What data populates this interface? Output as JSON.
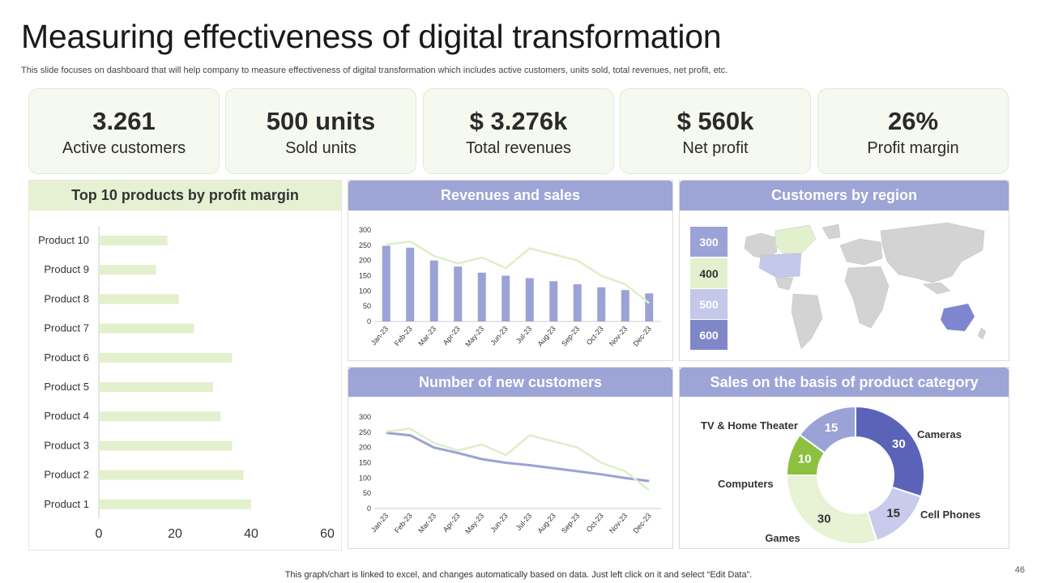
{
  "header": {
    "title": "Measuring effectiveness of digital transformation",
    "subtitle": "This slide focuses on dashboard that will help company to measure effectiveness of digital transformation which includes active customers, units sold, total revenues, net profit, etc."
  },
  "kpis": [
    {
      "value": "3.261",
      "label": "Active customers"
    },
    {
      "value": "500 units",
      "label": "Sold units"
    },
    {
      "value": "$ 3.276k",
      "label": "Total revenues"
    },
    {
      "value": "$ 560k",
      "label": "Net profit"
    },
    {
      "value": "26%",
      "label": "Profit margin"
    }
  ],
  "panels": {
    "products": "Top 10 products by profit margin",
    "revenues": "Revenues and sales",
    "region": "Customers by region",
    "new_customers": "Number of new customers",
    "category": "Sales on the basis of product category"
  },
  "region_legend": [
    "300",
    "400",
    "500",
    "600"
  ],
  "colors": {
    "green_light": "#e6f1d4",
    "bar_green": "#e3f0cd",
    "blue": "#9da4d6",
    "bar_blue": "#9ba2d5",
    "dark_blue": "#5b63b8",
    "lime": "#8dc03f",
    "pale_lime": "#e8f2d4"
  },
  "chart_data": [
    {
      "type": "bar",
      "orientation": "horizontal",
      "title": "Top 10 products by profit margin",
      "categories": [
        "Product 10",
        "Product 9",
        "Product 8",
        "Product 7",
        "Product 6",
        "Product 5",
        "Product 4",
        "Product 3",
        "Product 2",
        "Product 1"
      ],
      "values": [
        18,
        15,
        21,
        25,
        35,
        30,
        32,
        35,
        38,
        40
      ],
      "xlim": [
        0,
        60
      ],
      "xticks": [
        "0",
        "20",
        "40",
        "60"
      ]
    },
    {
      "type": "bar",
      "title": "Revenues and sales",
      "categories": [
        "Jan-23",
        "Feb-23",
        "Mar-23",
        "Apr-23",
        "May-23",
        "Jun-23",
        "Jul-23",
        "Aug-23",
        "Sep-23",
        "Oct-23",
        "Nov-23",
        "Dec-23"
      ],
      "series": [
        {
          "values": [
            248,
            242,
            200,
            180,
            160,
            150,
            142,
            132,
            122,
            112,
            103,
            92
          ],
          "kind": "bar"
        },
        {
          "values": [
            252,
            262,
            215,
            190,
            210,
            175,
            240,
            220,
            200,
            150,
            122,
            60
          ],
          "kind": "line"
        }
      ],
      "ylim": [
        0,
        300
      ],
      "yticks": [
        "0",
        "50",
        "100",
        "150",
        "200",
        "250",
        "300"
      ]
    },
    {
      "type": "line",
      "title": "Number of new customers",
      "categories": [
        "Jan-23",
        "Feb-23",
        "Mar-23",
        "Apr-23",
        "May-23",
        "Jun-23",
        "Jul-23",
        "Aug-23",
        "Sep-23",
        "Oct-23",
        "Nov-23",
        "Dec-23"
      ],
      "series": [
        {
          "values": [
            248,
            240,
            200,
            182,
            162,
            150,
            142,
            132,
            122,
            112,
            100,
            90
          ]
        },
        {
          "values": [
            252,
            262,
            215,
            190,
            210,
            175,
            240,
            220,
            200,
            150,
            122,
            60
          ]
        }
      ],
      "ylim": [
        0,
        300
      ],
      "yticks": [
        "0",
        "50",
        "100",
        "150",
        "200",
        "250",
        "300"
      ]
    },
    {
      "type": "pie",
      "title": "Sales on the basis of product category",
      "categories": [
        "Cameras",
        "Cell Phones",
        "Games",
        "Computers",
        "TV & Home Theater"
      ],
      "values": [
        30,
        15,
        30,
        10,
        15
      ]
    }
  ],
  "footer": {
    "note": "This graph/chart is linked to excel,  and changes automatically based on data. Just left click on it and select “Edit Data”.",
    "page": "46"
  }
}
